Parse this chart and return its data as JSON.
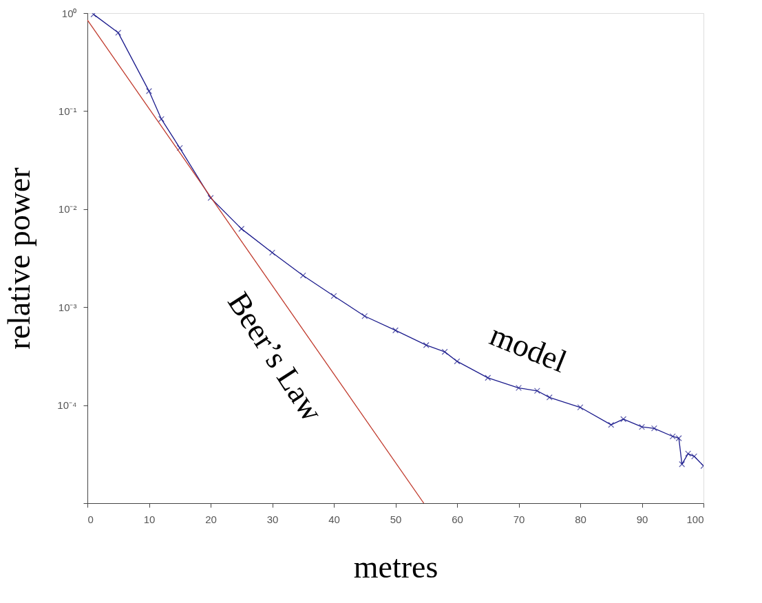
{
  "chart_data": {
    "type": "line",
    "xlabel": "metres",
    "ylabel": "relative power",
    "log": "y",
    "grid": false,
    "xlim": [
      0,
      100
    ],
    "xticks": [
      0,
      10,
      20,
      30,
      40,
      50,
      60,
      70,
      80,
      90,
      100
    ],
    "ylim": [
      1e-05,
      1
    ],
    "yticks": [
      {
        "value": 1,
        "label": "10⁰"
      },
      {
        "value": 0.1,
        "label": "10⁻¹"
      },
      {
        "value": 0.01,
        "label": "10⁻²"
      },
      {
        "value": 0.001,
        "label": "10⁻³"
      },
      {
        "value": 0.0001,
        "label": "10⁻⁴"
      },
      {
        "value": 1e-05,
        "label": null
      }
    ],
    "series": [
      {
        "color": "#1a1a8c",
        "marker": "cross",
        "x": [
          1,
          5,
          10,
          12,
          15,
          20,
          25,
          30,
          35,
          40,
          45,
          50,
          55,
          58,
          60,
          65,
          70,
          73,
          75,
          80,
          85,
          87,
          90,
          92,
          95,
          96,
          96.5,
          97.5,
          98.5,
          100
        ],
        "values": [
          0.97,
          0.63,
          0.16,
          0.083,
          0.042,
          0.013,
          0.0063,
          0.0036,
          0.0021,
          0.0013,
          0.00081,
          0.00058,
          0.00041,
          0.00035,
          0.00028,
          0.00019,
          0.00015,
          0.00014,
          0.00012,
          9.5e-05,
          6.3e-05,
          7.2e-05,
          6e-05,
          5.8e-05,
          4.8e-05,
          4.6e-05,
          2.5e-05,
          3.2e-05,
          3e-05,
          2.4e-05
        ]
      },
      {
        "color": "#c0392b",
        "marker": "none",
        "x": [
          0,
          54.6
        ],
        "values": [
          0.85,
          1e-05
        ]
      }
    ],
    "annotations": [
      "Beer’s Law",
      "model"
    ]
  }
}
